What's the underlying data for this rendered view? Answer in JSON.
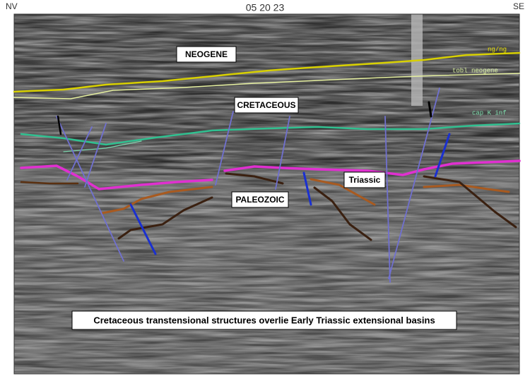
{
  "header": {
    "left": "NV",
    "center": "05 20 23",
    "right": "SE"
  },
  "labels": {
    "neogene": "NEOGENE",
    "cretaceous": "CRETACEOUS",
    "paleozoic": "PALEOZOIC",
    "triassic": "Triassic"
  },
  "horizon_labels": [
    "ng/ng",
    "tobl neogene",
    "cap K inf"
  ],
  "caption": "Cretaceous transtensional structures overlie Early Triassic extensional basins"
}
